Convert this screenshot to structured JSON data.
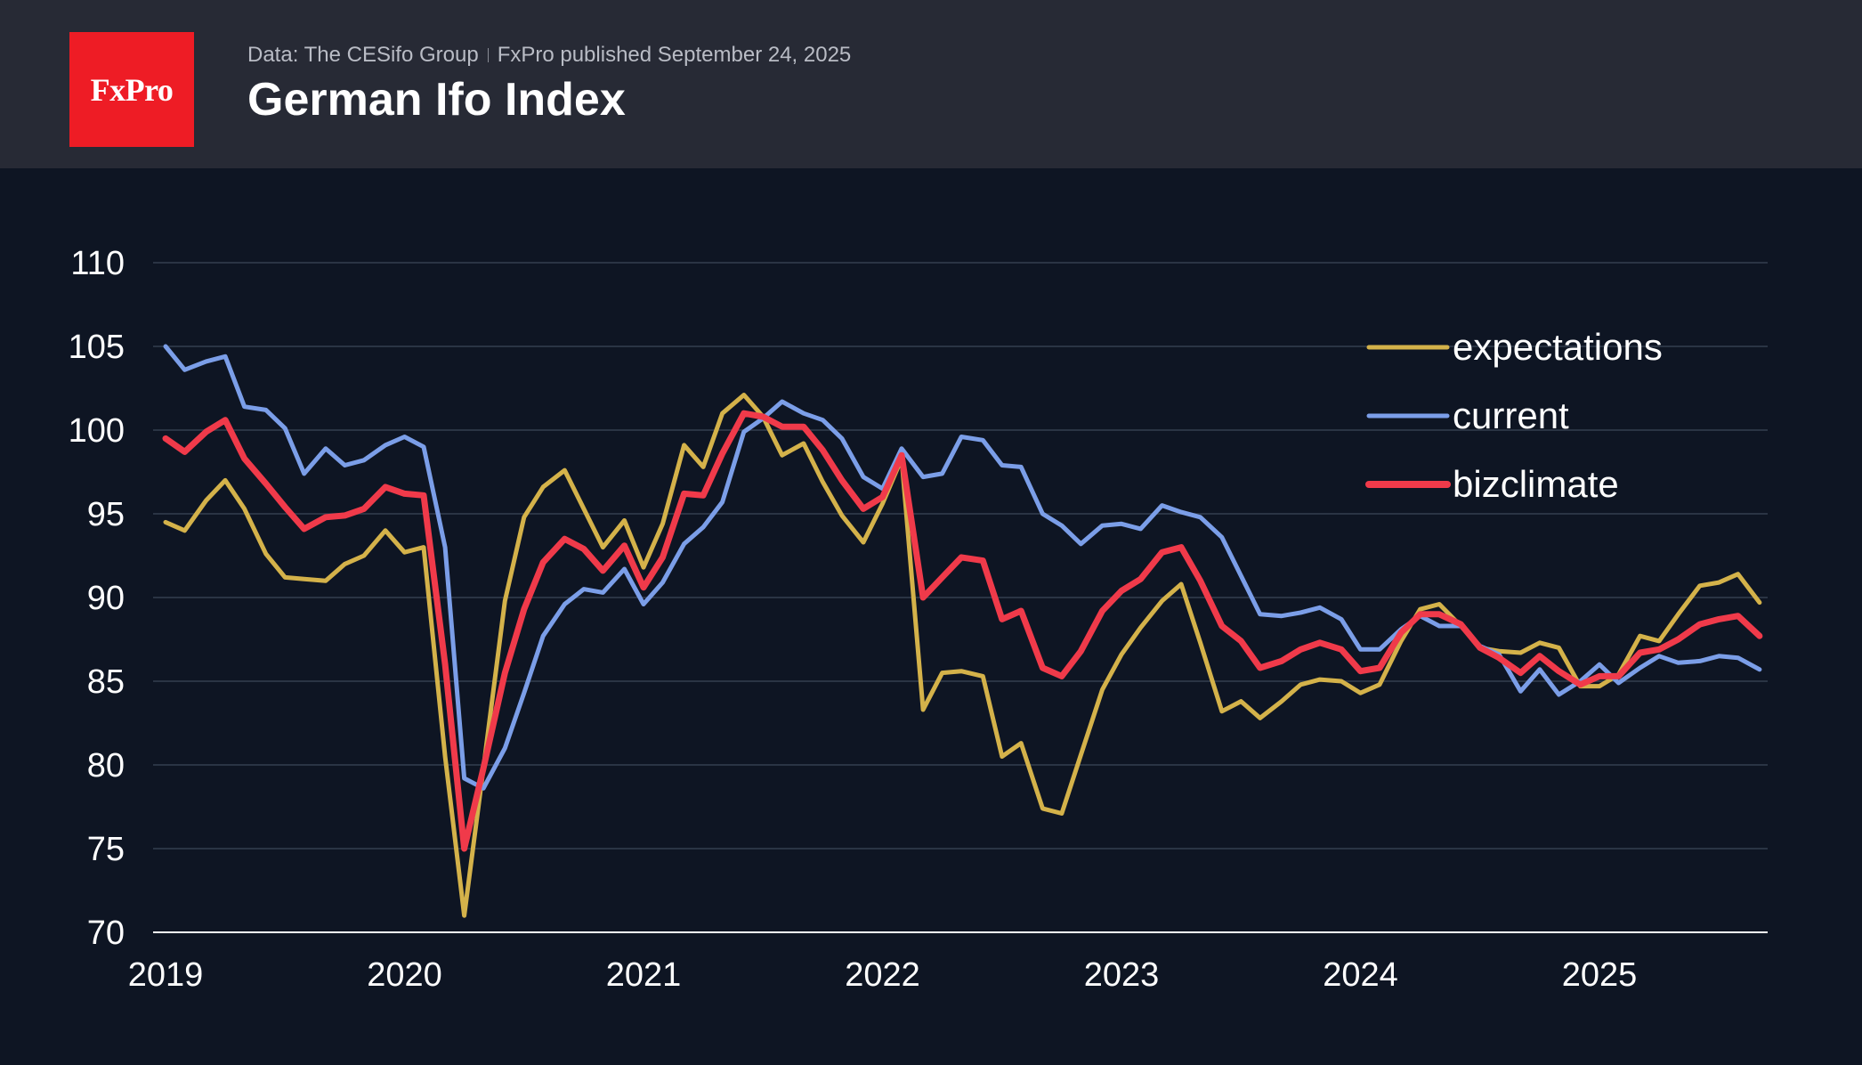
{
  "header": {
    "logo_text": "FxPro",
    "source": "Data: The CESifo Group",
    "published": "FxPro published September 24, 2025",
    "title": "German Ifo Index",
    "background": "#272a35",
    "logo_color": "#ee1c25"
  },
  "chart_data": {
    "type": "line",
    "title": "German Ifo Index",
    "xlabel": "",
    "ylabel": "",
    "ylim": [
      70,
      110
    ],
    "yticks": [
      70,
      75,
      80,
      85,
      90,
      95,
      100,
      105,
      110
    ],
    "xlim": [
      2019.0,
      2025.75
    ],
    "xticks": [
      2019,
      2020,
      2021,
      2022,
      2023,
      2024,
      2025
    ],
    "grid": "horizontal",
    "legend_position": "top-right",
    "background": "#0e1523",
    "series": [
      {
        "name": "expectations",
        "color": "#d4b24a",
        "x": [
          2019.0,
          2019.08,
          2019.17,
          2019.25,
          2019.33,
          2019.42,
          2019.5,
          2019.58,
          2019.67,
          2019.75,
          2019.83,
          2019.92,
          2020.0,
          2020.08,
          2020.17,
          2020.25,
          2020.33,
          2020.42,
          2020.5,
          2020.58,
          2020.67,
          2020.75,
          2020.83,
          2020.92,
          2021.0,
          2021.08,
          2021.17,
          2021.25,
          2021.33,
          2021.42,
          2021.5,
          2021.58,
          2021.67,
          2021.75,
          2021.83,
          2021.92,
          2022.0,
          2022.08,
          2022.17,
          2022.25,
          2022.33,
          2022.42,
          2022.5,
          2022.58,
          2022.67,
          2022.75,
          2022.83,
          2022.92,
          2023.0,
          2023.08,
          2023.17,
          2023.25,
          2023.33,
          2023.42,
          2023.5,
          2023.58,
          2023.67,
          2023.75,
          2023.83,
          2023.92,
          2024.0,
          2024.08,
          2024.17,
          2024.25,
          2024.33,
          2024.42,
          2024.5,
          2024.58,
          2024.67,
          2024.75,
          2024.83,
          2024.92,
          2025.0,
          2025.08,
          2025.17,
          2025.25,
          2025.33,
          2025.42,
          2025.5,
          2025.58,
          2025.67
        ],
        "values": [
          94.5,
          94.0,
          95.8,
          97.0,
          95.3,
          92.6,
          91.2,
          91.1,
          91.0,
          92.0,
          92.5,
          94.0,
          92.7,
          93.0,
          80.5,
          71.0,
          79.8,
          89.8,
          94.8,
          96.6,
          97.6,
          95.3,
          93.0,
          94.6,
          91.8,
          94.4,
          99.1,
          97.8,
          101.0,
          102.1,
          100.8,
          98.5,
          99.2,
          96.9,
          94.9,
          93.3,
          95.6,
          98.3,
          83.3,
          85.5,
          85.6,
          85.3,
          80.5,
          81.3,
          77.4,
          77.1,
          80.6,
          84.5,
          86.6,
          88.2,
          89.8,
          90.8,
          87.3,
          83.2,
          83.8,
          82.8,
          83.8,
          84.8,
          85.1,
          85.0,
          84.3,
          84.8,
          87.4,
          89.3,
          89.6,
          88.3,
          87.0,
          86.8,
          86.7,
          87.3,
          87.0,
          84.7,
          84.7,
          85.4,
          87.7,
          87.4,
          89.0,
          90.7,
          90.9,
          91.4,
          89.7
        ]
      },
      {
        "name": "current",
        "color": "#7b9ee8",
        "x": [
          2019.0,
          2019.08,
          2019.17,
          2019.25,
          2019.33,
          2019.42,
          2019.5,
          2019.58,
          2019.67,
          2019.75,
          2019.83,
          2019.92,
          2020.0,
          2020.08,
          2020.17,
          2020.25,
          2020.33,
          2020.42,
          2020.5,
          2020.58,
          2020.67,
          2020.75,
          2020.83,
          2020.92,
          2021.0,
          2021.08,
          2021.17,
          2021.25,
          2021.33,
          2021.42,
          2021.5,
          2021.58,
          2021.67,
          2021.75,
          2021.83,
          2021.92,
          2022.0,
          2022.08,
          2022.17,
          2022.25,
          2022.33,
          2022.42,
          2022.5,
          2022.58,
          2022.67,
          2022.75,
          2022.83,
          2022.92,
          2023.0,
          2023.08,
          2023.17,
          2023.25,
          2023.33,
          2023.42,
          2023.5,
          2023.58,
          2023.67,
          2023.75,
          2023.83,
          2023.92,
          2024.0,
          2024.08,
          2024.17,
          2024.25,
          2024.33,
          2024.42,
          2024.5,
          2024.58,
          2024.67,
          2024.75,
          2024.83,
          2024.92,
          2025.0,
          2025.08,
          2025.17,
          2025.25,
          2025.33,
          2025.42,
          2025.5,
          2025.58,
          2025.67
        ],
        "values": [
          105.0,
          103.6,
          104.1,
          104.4,
          101.4,
          101.2,
          100.1,
          97.4,
          98.9,
          97.9,
          98.2,
          99.1,
          99.6,
          99.0,
          93.0,
          79.2,
          78.6,
          81.0,
          84.3,
          87.7,
          89.6,
          90.5,
          90.3,
          91.7,
          89.6,
          90.9,
          93.2,
          94.2,
          95.7,
          99.9,
          100.7,
          101.7,
          101.0,
          100.6,
          99.5,
          97.2,
          96.5,
          98.9,
          97.2,
          97.4,
          99.6,
          99.4,
          97.9,
          97.8,
          95.0,
          94.3,
          93.2,
          94.3,
          94.4,
          94.1,
          95.5,
          95.1,
          94.8,
          93.6,
          91.3,
          89.0,
          88.9,
          89.1,
          89.4,
          88.7,
          86.9,
          86.9,
          88.1,
          88.9,
          88.3,
          88.3,
          87.1,
          86.6,
          84.4,
          85.7,
          84.2,
          85.0,
          86.0,
          84.9,
          85.8,
          86.5,
          86.1,
          86.2,
          86.5,
          86.4,
          85.7
        ]
      },
      {
        "name": "bizclimate",
        "color": "#f03a4a",
        "x": [
          2019.0,
          2019.08,
          2019.17,
          2019.25,
          2019.33,
          2019.42,
          2019.5,
          2019.58,
          2019.67,
          2019.75,
          2019.83,
          2019.92,
          2020.0,
          2020.08,
          2020.17,
          2020.25,
          2020.33,
          2020.42,
          2020.5,
          2020.58,
          2020.67,
          2020.75,
          2020.83,
          2020.92,
          2021.0,
          2021.08,
          2021.17,
          2021.25,
          2021.33,
          2021.42,
          2021.5,
          2021.58,
          2021.67,
          2021.75,
          2021.83,
          2021.92,
          2022.0,
          2022.08,
          2022.17,
          2022.25,
          2022.33,
          2022.42,
          2022.5,
          2022.58,
          2022.67,
          2022.75,
          2022.83,
          2022.92,
          2023.0,
          2023.08,
          2023.17,
          2023.25,
          2023.33,
          2023.42,
          2023.5,
          2023.58,
          2023.67,
          2023.75,
          2023.83,
          2023.92,
          2024.0,
          2024.08,
          2024.17,
          2024.25,
          2024.33,
          2024.42,
          2024.5,
          2024.58,
          2024.67,
          2024.75,
          2024.83,
          2024.92,
          2025.0,
          2025.08,
          2025.17,
          2025.25,
          2025.33,
          2025.42,
          2025.5,
          2025.58,
          2025.67
        ],
        "values": [
          99.5,
          98.7,
          99.9,
          100.6,
          98.3,
          96.8,
          95.4,
          94.1,
          94.8,
          94.9,
          95.3,
          96.6,
          96.2,
          96.1,
          86.0,
          75.0,
          79.8,
          85.5,
          89.3,
          92.1,
          93.5,
          92.9,
          91.6,
          93.1,
          90.6,
          92.4,
          96.2,
          96.1,
          98.6,
          101.0,
          100.8,
          100.2,
          100.2,
          98.8,
          97.0,
          95.3,
          96.0,
          98.5,
          90.0,
          91.2,
          92.4,
          92.2,
          88.7,
          89.2,
          85.8,
          85.3,
          86.8,
          89.2,
          90.4,
          91.1,
          92.7,
          93.0,
          91.0,
          88.3,
          87.4,
          85.8,
          86.2,
          86.9,
          87.3,
          86.9,
          85.6,
          85.8,
          87.9,
          89.0,
          89.0,
          88.4,
          87.0,
          86.4,
          85.5,
          86.5,
          85.6,
          84.8,
          85.3,
          85.3,
          86.7,
          86.9,
          87.5,
          88.4,
          88.7,
          88.9,
          87.7
        ]
      }
    ]
  }
}
